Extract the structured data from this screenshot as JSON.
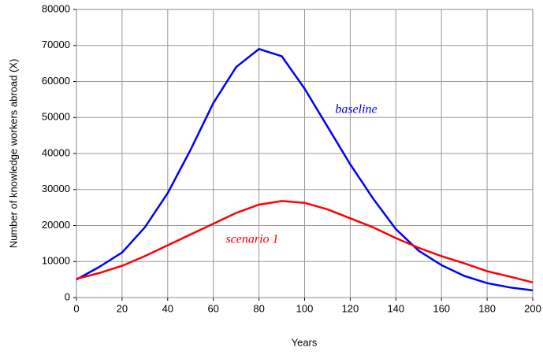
{
  "chart_data": {
    "type": "line",
    "x_label": "Years",
    "y_label": "Number of knowledge workers abroad (X)",
    "x": [
      0,
      10,
      20,
      30,
      40,
      50,
      60,
      70,
      80,
      90,
      100,
      110,
      120,
      130,
      140,
      150,
      160,
      170,
      180,
      190,
      200
    ],
    "series": [
      {
        "name": "baseline",
        "color": "#0000ff",
        "values": [
          5000,
          8500,
          12500,
          19500,
          29000,
          41000,
          54000,
          64000,
          69000,
          67000,
          58000,
          47500,
          37000,
          27500,
          19000,
          13000,
          9000,
          6000,
          4000,
          2800,
          2000
        ]
      },
      {
        "name": "scenario 1",
        "color": "#ff0000",
        "values": [
          5200,
          6800,
          8800,
          11500,
          14500,
          17500,
          20500,
          23500,
          25800,
          26800,
          26300,
          24500,
          22000,
          19500,
          16500,
          13800,
          11500,
          9500,
          7300,
          5800,
          4200
        ]
      }
    ],
    "xlim": [
      0,
      200
    ],
    "xticks": [
      0,
      20,
      40,
      60,
      80,
      100,
      120,
      140,
      160,
      180,
      200
    ],
    "ylim": [
      0,
      80000
    ],
    "yticks": [
      0,
      10000,
      20000,
      30000,
      40000,
      50000,
      60000,
      70000,
      80000
    ],
    "grid": true
  }
}
